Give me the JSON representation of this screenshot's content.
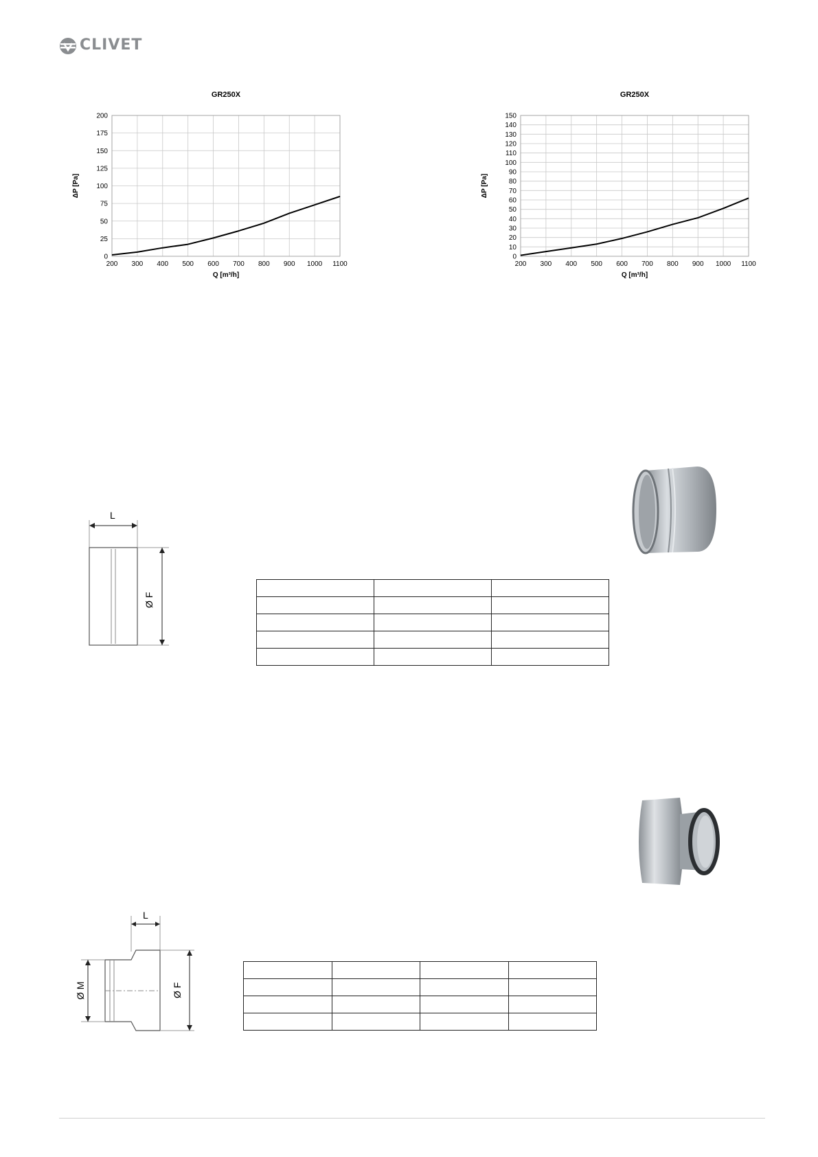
{
  "header": {
    "logo_text": "CLIVET",
    "logo_color": "#8a8d90"
  },
  "chart_data": [
    {
      "type": "line",
      "title": "GR250X",
      "xlabel": "Q [m³/h]",
      "ylabel": "ΔP [Pa]",
      "xlim": [
        200,
        1100
      ],
      "ylim": [
        0,
        200
      ],
      "xticks": [
        200,
        300,
        400,
        500,
        600,
        700,
        800,
        900,
        1000,
        1100
      ],
      "yticks": [
        0,
        25,
        50,
        75,
        100,
        125,
        150,
        175,
        200
      ],
      "grid": true,
      "x": [
        200,
        300,
        400,
        500,
        600,
        700,
        800,
        900,
        1000,
        1100
      ],
      "series": [
        {
          "values": [
            2,
            6,
            12,
            17,
            26,
            36,
            47,
            61,
            73,
            85
          ]
        }
      ]
    },
    {
      "type": "line",
      "title": "GR250X",
      "xlabel": "Q [m³/h]",
      "ylabel": "ΔP [Pa]",
      "xlim": [
        200,
        1100
      ],
      "ylim": [
        0,
        150
      ],
      "xticks": [
        200,
        300,
        400,
        500,
        600,
        700,
        800,
        900,
        1000,
        1100
      ],
      "yticks": [
        0,
        10,
        20,
        30,
        40,
        50,
        60,
        70,
        80,
        90,
        100,
        110,
        120,
        130,
        140,
        150
      ],
      "grid": true,
      "x": [
        200,
        300,
        400,
        500,
        600,
        700,
        800,
        900,
        1000,
        1100
      ],
      "series": [
        {
          "values": [
            1,
            5,
            9,
            13,
            19,
            26,
            34,
            41,
            51,
            62
          ]
        }
      ]
    }
  ],
  "drawing1": {
    "length_label": "L",
    "diameter_label": "Ø F"
  },
  "drawing2": {
    "length_label": "L",
    "diameter_m_label": "Ø M",
    "diameter_f_label": "Ø F"
  },
  "table1": {
    "rows": 5,
    "cols": 3
  },
  "table2": {
    "rows": 4,
    "cols": 4
  }
}
